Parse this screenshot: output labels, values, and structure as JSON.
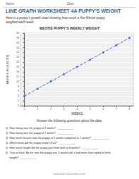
{
  "chart_data": {
    "type": "line",
    "title": "LINE GRAPH WORKSHEET 4A PUPPY'S WEIGHT",
    "subtitle": "Here is a puppy's growth chart showing how much a 4oz Westie puppy weighed each week.",
    "annotations": [
      "Name",
      "Date",
      "WESTIE PUPPY'S WEEKLY WEIGHT",
      "Answer the following questions about the data:",
      "1)  How heavy was the puppy at 3 weeks?  ___________",
      "2)  How heavy was the puppy at 7 weeks?  ___________",
      "3)  How much heavier was the puppy at 5 weeks compared to 2 weeks?  ___________",
      "4)  Which week did the puppy weigh 13 oz?  ___________",
      "5)  How much weight did the puppy gain from birth to 8 weeks?  ___________",
      "6)  True or false: By the time the puppy was 3 weeks old, it had more than tripled its birth",
      "     weight?  ___________",
      "www.math-salamanders.com"
    ],
    "xlabel": "WEEKS",
    "ylabel": "WEIGHT (IN OUNCES)",
    "x": [
      0,
      1,
      2,
      3,
      4,
      5,
      6,
      7,
      8
    ],
    "values": [
      4,
      7,
      10,
      13,
      16,
      19,
      22,
      25,
      28
    ],
    "xlim": [
      -0.3,
      8.3
    ],
    "ylim": [
      0,
      30
    ],
    "xticks": [
      0,
      1,
      2,
      3,
      4,
      5,
      6,
      7,
      8
    ],
    "yticks": [
      0,
      2,
      4,
      6,
      8,
      10,
      12,
      14,
      16,
      18,
      20,
      22,
      24,
      26,
      28,
      30
    ],
    "color": "#4472C4",
    "marker": "circle",
    "line_style": "dashed",
    "grid": true
  }
}
